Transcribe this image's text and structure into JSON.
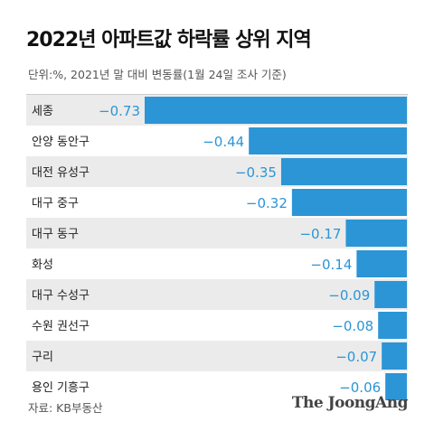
{
  "header": {
    "title": "2022년 아파트값 하락률 상위 지역",
    "subtitle": "단위:%, 2021년 말 대비 변동률(1월 24일 조사 기준)"
  },
  "footer": {
    "source": "자료: KB부동산",
    "brand": "The JoongAng"
  },
  "colors": {
    "bar": "#2b95d6",
    "value_text": "#2b95d6",
    "row_odd": "#ebebeb",
    "row_even": "#ffffff",
    "label_text": "#222222"
  },
  "chart_data": {
    "type": "bar",
    "orientation": "horizontal",
    "categories": [
      "세종",
      "안양 동안구",
      "대전 유성구",
      "대구 중구",
      "대구 동구",
      "화성",
      "대구 수성구",
      "수원 권선구",
      "구리",
      "용인 기흥구"
    ],
    "values": [
      -0.73,
      -0.44,
      -0.35,
      -0.32,
      -0.17,
      -0.14,
      -0.09,
      -0.08,
      -0.07,
      -0.06
    ],
    "value_labels": [
      "−0.73",
      "−0.44",
      "−0.35",
      "−0.32",
      "−0.17",
      "−0.14",
      "−0.09",
      "−0.08",
      "−0.07",
      "−0.06"
    ],
    "title": "2022년 아파트값 하락률 상위 지역",
    "xlabel": "",
    "ylabel": "",
    "xlim": [
      -0.73,
      0
    ],
    "grid": false,
    "legend": "none"
  }
}
